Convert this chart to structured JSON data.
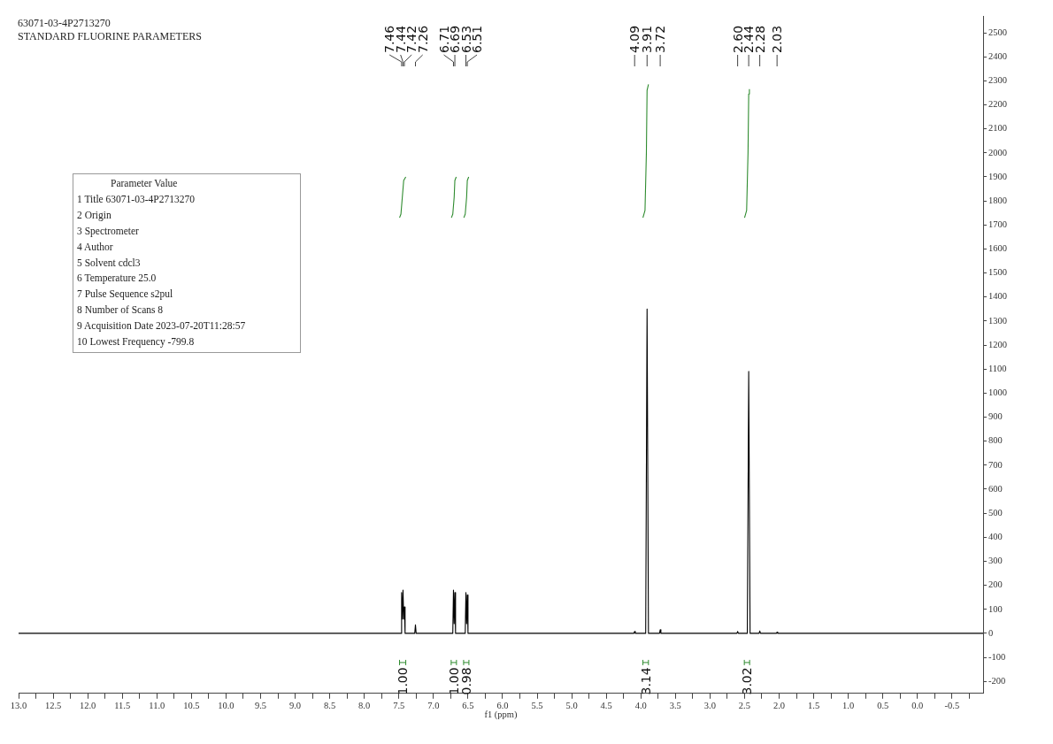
{
  "chart_data": {
    "type": "line",
    "title": "63071-03-4P2713270",
    "subtitle": "STANDARD FLUORINE PARAMETERS",
    "xlabel": "f1 (ppm)",
    "xlim": [
      13.0,
      -0.95
    ],
    "ylim": [
      -250,
      2570
    ],
    "xticks": [
      {
        "value": 13,
        "label": "13.0"
      },
      {
        "value": 12.75,
        "label": null
      },
      12.5,
      {
        "value": 12.25,
        "label": null
      },
      {
        "value": 12,
        "label": "12.0"
      },
      {
        "value": 11.75,
        "label": null
      },
      11.5,
      {
        "value": 11.25,
        "label": null
      },
      {
        "value": 11,
        "label": "11.0"
      },
      {
        "value": 10.75,
        "label": null
      },
      10.5,
      {
        "value": 10.25,
        "label": null
      },
      {
        "value": 10,
        "label": "10.0"
      },
      {
        "value": 9.75,
        "label": null
      },
      9.5,
      {
        "value": 9.25,
        "label": null
      },
      {
        "value": 9,
        "label": "9.0"
      },
      {
        "value": 8.75,
        "label": null
      },
      8.5,
      {
        "value": 8.25,
        "label": null
      },
      {
        "value": 8,
        "label": "8.0"
      },
      {
        "value": 7.75,
        "label": null
      },
      7.5,
      {
        "value": 7.25,
        "label": null
      },
      {
        "value": 7,
        "label": "7.0"
      },
      {
        "value": 6.75,
        "label": null
      },
      6.5,
      {
        "value": 6.25,
        "label": null
      },
      {
        "value": 6,
        "label": "6.0"
      },
      {
        "value": 5.75,
        "label": null
      },
      5.5,
      {
        "value": 5.25,
        "label": null
      },
      {
        "value": 5,
        "label": "5.0"
      },
      {
        "value": 4.75,
        "label": null
      },
      4.5,
      {
        "value": 4.25,
        "label": null
      },
      {
        "value": 4,
        "label": "4.0"
      },
      {
        "value": 3.75,
        "label": null
      },
      3.5,
      {
        "value": 3.25,
        "label": null
      },
      {
        "value": 3,
        "label": "3.0"
      },
      {
        "value": 2.75,
        "label": null
      },
      2.5,
      {
        "value": 2.25,
        "label": null
      },
      {
        "value": 2,
        "label": "2.0"
      },
      {
        "value": 1.75,
        "label": null
      },
      1.5,
      {
        "value": 1.25,
        "label": null
      },
      {
        "value": 1,
        "label": "1.0"
      },
      {
        "value": 0.75,
        "label": null
      },
      0.5,
      {
        "value": 0.25,
        "label": null
      },
      {
        "value": 0,
        "label": "0.0"
      },
      {
        "value": -0.25,
        "label": null
      },
      -0.5,
      {
        "value": -0.75,
        "label": null
      }
    ],
    "yticks": [
      -200,
      -100,
      0,
      100,
      200,
      300,
      400,
      500,
      600,
      700,
      800,
      900,
      1000,
      1100,
      1200,
      1300,
      1400,
      1500,
      1600,
      1700,
      1800,
      1900,
      2000,
      2100,
      2200,
      2300,
      2400,
      2500
    ],
    "grid": false,
    "legend": false,
    "series": [
      {
        "color": "#000000",
        "x": [
          13.0,
          7.5,
          7.47,
          7.46,
          7.45,
          7.44,
          7.43,
          7.42,
          7.41,
          7.27,
          7.26,
          7.25,
          6.72,
          6.71,
          6.7,
          6.69,
          6.68,
          6.54,
          6.53,
          6.52,
          6.51,
          6.5,
          4.1,
          4.09,
          4.08,
          3.93,
          3.91,
          3.89,
          3.73,
          3.72,
          3.71,
          2.61,
          2.6,
          2.59,
          2.46,
          2.44,
          2.42,
          2.29,
          2.28,
          2.27,
          2.04,
          2.03,
          2.02,
          -0.95
        ],
        "values": [
          0,
          0,
          0,
          170,
          60,
          180,
          60,
          110,
          0,
          0,
          35,
          0,
          0,
          180,
          40,
          170,
          0,
          0,
          170,
          40,
          160,
          0,
          0,
          8,
          0,
          0,
          1350,
          0,
          0,
          15,
          0,
          0,
          8,
          0,
          0,
          1090,
          0,
          0,
          10,
          0,
          0,
          5,
          0,
          0
        ]
      },
      {
        "color": "#2e8b2e",
        "x": [
          7.49,
          7.47,
          7.45,
          7.43,
          7.4
        ],
        "values": [
          1730,
          1745,
          1815,
          1885,
          1900
        ]
      },
      {
        "color": "#2e8b2e",
        "x": [
          6.74,
          6.72,
          6.7,
          6.69,
          6.67
        ],
        "values": [
          1730,
          1745,
          1815,
          1885,
          1900
        ]
      },
      {
        "color": "#2e8b2e",
        "x": [
          6.56,
          6.54,
          6.52,
          6.51,
          6.49
        ],
        "values": [
          1730,
          1745,
          1815,
          1885,
          1900
        ]
      },
      {
        "color": "#2e8b2e",
        "x": [
          3.97,
          3.94,
          3.92,
          3.91,
          3.89
        ],
        "values": [
          1730,
          1760,
          2000,
          2260,
          2285
        ]
      },
      {
        "color": "#2e8b2e",
        "x": [
          2.5,
          2.47,
          2.45,
          2.44,
          2.43
        ],
        "values": [
          1730,
          1760,
          2000,
          2245,
          2265
        ]
      }
    ],
    "annotations": [
      "Parameter Value",
      "1 Title 63071-03-4P2713270",
      "2 Origin",
      "3 Spectrometer",
      "4 Author",
      "5 Solvent cdcl3",
      "6 Temperature 25.0",
      "7 Pulse Sequence s2pul",
      "8 Number of Scans 8",
      "9 Acquisition Date 2023-07-20T11:28:57",
      "10 Lowest Frequency -799.8",
      {
        "text": "7.46",
        "x": 7.46
      },
      {
        "text": "7.44",
        "x": 7.44
      },
      {
        "text": "7.42",
        "x": 7.42
      },
      {
        "text": "7.26",
        "x": 7.26
      },
      {
        "text": "6.71",
        "x": 6.71
      },
      {
        "text": "6.69",
        "x": 6.69
      },
      {
        "text": "6.53",
        "x": 6.53
      },
      {
        "text": "6.51",
        "x": 6.51
      },
      {
        "text": "4.09",
        "x": 4.09
      },
      {
        "text": "3.91",
        "x": 3.91
      },
      {
        "text": "3.72",
        "x": 3.72
      },
      {
        "text": "2.60",
        "x": 2.6
      },
      {
        "text": "2.44",
        "x": 2.44
      },
      {
        "text": "2.28",
        "x": 2.28
      },
      {
        "text": "2.03",
        "x": 2.03
      },
      "1.00",
      "1.00",
      "0.98",
      "3.14",
      "3.02"
    ]
  }
}
